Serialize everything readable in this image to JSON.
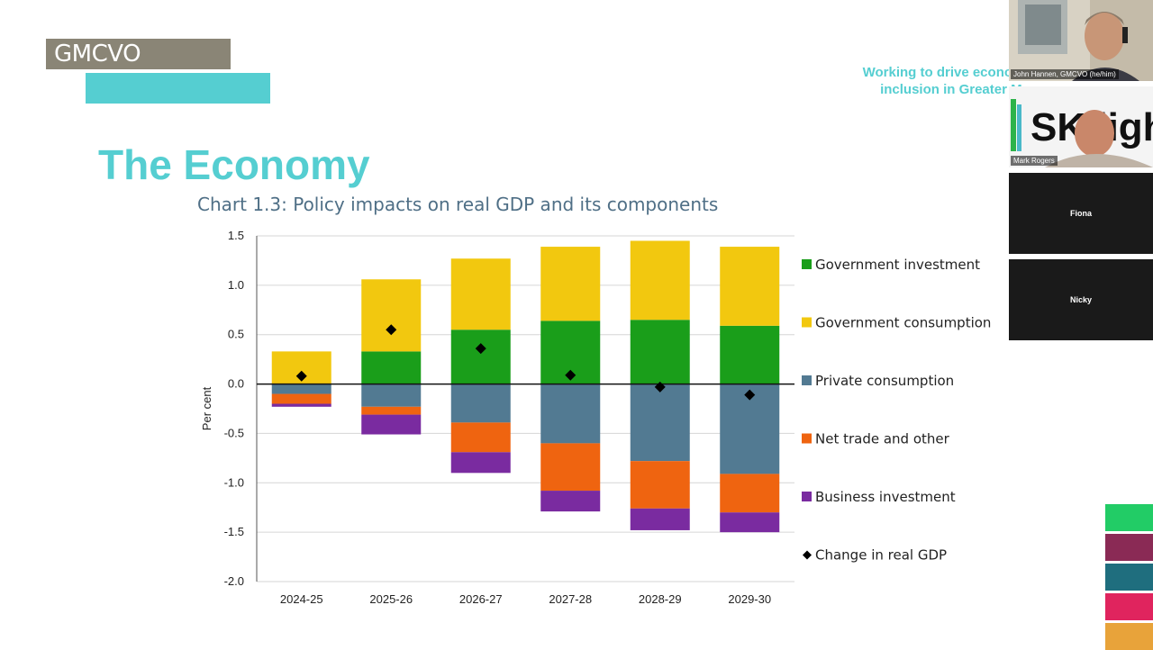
{
  "slide": {
    "logo_text": "GMCVO",
    "title": "The Economy",
    "tagline_line1": "Working to drive economic a",
    "tagline_line2": "inclusion in Greater Ma"
  },
  "participants": [
    {
      "name": "John Hannen, GMCVO (he/him)",
      "video": true
    },
    {
      "name": "Mark Rogers",
      "video": true,
      "background_text": "SK light"
    },
    {
      "name": "Fiona",
      "video": false
    },
    {
      "name": "Nicky",
      "video": false
    }
  ],
  "colors": {
    "gov_investment": "#1a9e1a",
    "gov_consumption": "#f2c80f",
    "private_consumption": "#527a92",
    "net_trade": "#ef6410",
    "business_investment": "#7a2ba0",
    "gdp_marker": "#000000",
    "accent": "#55ced1",
    "squares": [
      "#22cc66",
      "#8a2a55",
      "#1f6e7e",
      "#e0245e",
      "#e8a33a"
    ]
  },
  "chart_data": {
    "type": "bar",
    "stacked": true,
    "title": "Chart 1.3: Policy impacts on real GDP and its components",
    "ylabel": "Per cent",
    "ylim": [
      -2.0,
      1.5
    ],
    "yticks": [
      "1.5",
      "1.0",
      "0.5",
      "0.0",
      "-0.5",
      "-1.0",
      "-1.5",
      "-2.0"
    ],
    "ytick_values": [
      1.5,
      1.0,
      0.5,
      0.0,
      -0.5,
      -1.0,
      -1.5,
      -2.0
    ],
    "categories": [
      "2024-25",
      "2025-26",
      "2026-27",
      "2027-28",
      "2028-29",
      "2029-30"
    ],
    "series": [
      {
        "name": "Government investment",
        "key": "gov_investment",
        "values": [
          0.0,
          0.33,
          0.55,
          0.64,
          0.65,
          0.59
        ]
      },
      {
        "name": "Government consumption",
        "key": "gov_consumption",
        "values": [
          0.33,
          0.73,
          0.72,
          0.75,
          0.8,
          0.8
        ]
      },
      {
        "name": "Private consumption",
        "key": "private_consumption",
        "values": [
          -0.1,
          -0.23,
          -0.39,
          -0.6,
          -0.78,
          -0.91
        ]
      },
      {
        "name": "Net trade and other",
        "key": "net_trade",
        "values": [
          -0.1,
          -0.08,
          -0.3,
          -0.48,
          -0.48,
          -0.39
        ]
      },
      {
        "name": "Business investment",
        "key": "business_investment",
        "values": [
          -0.03,
          -0.2,
          -0.21,
          -0.21,
          -0.22,
          -0.2
        ]
      }
    ],
    "gdp_series": {
      "name": "Change in real GDP",
      "values": [
        0.08,
        0.55,
        0.36,
        0.09,
        -0.03,
        -0.11
      ]
    },
    "legend_position": "right",
    "grid": true
  }
}
